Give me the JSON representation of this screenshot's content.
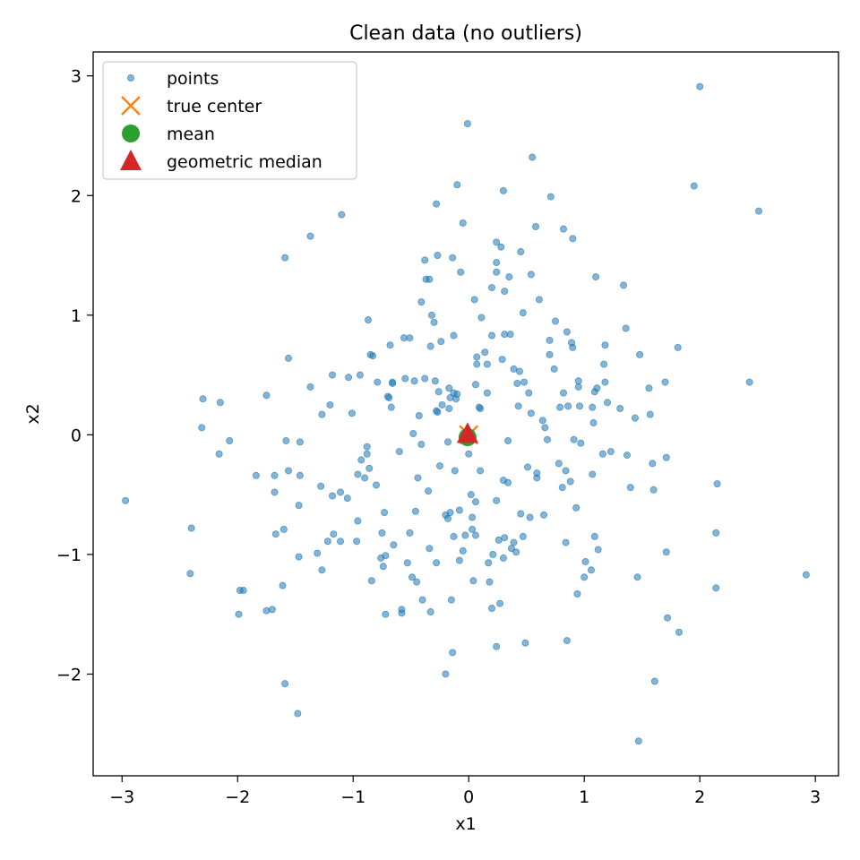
{
  "chart_data": {
    "type": "scatter",
    "title": "Clean data (no outliers)",
    "xlabel": "x1",
    "ylabel": "x2",
    "xlim": [
      -3.25,
      3.2
    ],
    "ylim": [
      -2.85,
      3.2
    ],
    "xticks": [
      -3,
      -2,
      -1,
      0,
      1,
      2,
      3
    ],
    "yticks": [
      -2,
      -1,
      0,
      1,
      2,
      3
    ],
    "tick_labels_x": [
      "−3",
      "−2",
      "−1",
      "0",
      "1",
      "2",
      "3"
    ],
    "tick_labels_y": [
      "−2",
      "−1",
      "0",
      "1",
      "2",
      "3"
    ],
    "grid": false,
    "legend_position": "top-left",
    "colors": {
      "points": "#1f77b4",
      "true_center": "#ff7f0e",
      "mean": "#2ca02c",
      "geometric_median": "#d62728"
    },
    "legend": [
      {
        "key": "points",
        "label": "points",
        "marker": "circle-small"
      },
      {
        "key": "true_center",
        "label": "true center",
        "marker": "x"
      },
      {
        "key": "mean",
        "label": "mean",
        "marker": "circle"
      },
      {
        "key": "geometric_median",
        "label": "geometric median",
        "marker": "triangle"
      }
    ],
    "series": [
      {
        "name": "points",
        "points": [
          [
            -2.97,
            -0.55
          ],
          [
            -2.4,
            -0.78
          ],
          [
            -2.41,
            -1.16
          ],
          [
            -2.3,
            0.3
          ],
          [
            -2.31,
            0.06
          ],
          [
            -2.15,
            0.27
          ],
          [
            -2.16,
            -0.16
          ],
          [
            -2.07,
            -0.05
          ],
          [
            -1.98,
            -1.3
          ],
          [
            -1.99,
            -1.5
          ],
          [
            -1.95,
            -1.3
          ],
          [
            -1.84,
            -0.34
          ],
          [
            -1.75,
            0.33
          ],
          [
            -1.75,
            -1.47
          ],
          [
            -1.7,
            -1.46
          ],
          [
            -1.67,
            -0.83
          ],
          [
            -1.68,
            -0.48
          ],
          [
            -1.68,
            -0.34
          ],
          [
            -1.61,
            -1.26
          ],
          [
            -1.6,
            -0.79
          ],
          [
            -1.59,
            1.48
          ],
          [
            -1.58,
            -0.05
          ],
          [
            -1.56,
            -0.3
          ],
          [
            -1.56,
            0.64
          ],
          [
            -1.59,
            -2.08
          ],
          [
            -1.48,
            -2.33
          ],
          [
            -1.47,
            -1.02
          ],
          [
            -1.46,
            -0.34
          ],
          [
            -1.46,
            -0.06
          ],
          [
            -1.47,
            -0.59
          ],
          [
            -1.37,
            1.66
          ],
          [
            -1.37,
            0.4
          ],
          [
            -1.31,
            -0.99
          ],
          [
            -1.28,
            -0.43
          ],
          [
            -1.27,
            -1.13
          ],
          [
            -1.27,
            0.17
          ],
          [
            -1.22,
            -0.89
          ],
          [
            -1.2,
            0.25
          ],
          [
            -1.18,
            0.5
          ],
          [
            -1.18,
            -0.51
          ],
          [
            -1.17,
            -0.83
          ],
          [
            -1.11,
            -0.48
          ],
          [
            -1.11,
            -0.89
          ],
          [
            -1.1,
            1.84
          ],
          [
            -1.05,
            -0.53
          ],
          [
            -1.04,
            0.48
          ],
          [
            -1.01,
            0.18
          ],
          [
            -0.97,
            -0.89
          ],
          [
            -0.96,
            -0.72
          ],
          [
            -0.96,
            -0.33
          ],
          [
            -0.94,
            0.5
          ],
          [
            -0.93,
            -0.21
          ],
          [
            -0.9,
            -0.36
          ],
          [
            -0.88,
            -0.1
          ],
          [
            -0.88,
            -0.16
          ],
          [
            -0.87,
            0.96
          ],
          [
            -0.85,
            0.67
          ],
          [
            -0.86,
            -0.28
          ],
          [
            -0.84,
            -1.22
          ],
          [
            -0.83,
            0.66
          ],
          [
            -0.8,
            -0.42
          ],
          [
            -0.79,
            0.44
          ],
          [
            -0.75,
            -0.82
          ],
          [
            -0.76,
            -1.03
          ],
          [
            -0.74,
            -1.1
          ],
          [
            -0.73,
            -0.65
          ],
          [
            -0.72,
            -1.01
          ],
          [
            -0.72,
            -1.5
          ],
          [
            -0.7,
            0.32
          ],
          [
            -0.69,
            0.31
          ],
          [
            -0.66,
            0.43
          ],
          [
            -0.66,
            0.44
          ],
          [
            -0.67,
            0.23
          ],
          [
            -0.68,
            0.75
          ],
          [
            -0.65,
            -0.92
          ],
          [
            -0.6,
            -0.14
          ],
          [
            -0.58,
            -1.46
          ],
          [
            -0.58,
            -1.49
          ],
          [
            -0.56,
            0.81
          ],
          [
            -0.55,
            0.47
          ],
          [
            -0.53,
            -1.07
          ],
          [
            -0.51,
            0.81
          ],
          [
            -0.51,
            -0.82
          ],
          [
            -0.49,
            -1.19
          ],
          [
            -0.48,
            0.01
          ],
          [
            -0.47,
            0.45
          ],
          [
            -0.46,
            -0.64
          ],
          [
            -0.45,
            -1.23
          ],
          [
            -0.44,
            -0.36
          ],
          [
            -0.43,
            0.16
          ],
          [
            -0.41,
            -0.08
          ],
          [
            -0.41,
            1.11
          ],
          [
            -0.4,
            -1.38
          ],
          [
            -0.38,
            0.47
          ],
          [
            -0.38,
            1.46
          ],
          [
            -0.37,
            1.3
          ],
          [
            -0.35,
            -0.47
          ],
          [
            -0.34,
            1.3
          ],
          [
            -0.34,
            -0.95
          ],
          [
            -0.33,
            0.74
          ],
          [
            -0.33,
            -1.48
          ],
          [
            -0.32,
            1.0
          ],
          [
            -0.3,
            0.94
          ],
          [
            -0.29,
            0.45
          ],
          [
            -0.28,
            1.93
          ],
          [
            -0.28,
            0.2
          ],
          [
            -0.28,
            -1.07
          ],
          [
            -0.27,
            0.19
          ],
          [
            -0.26,
            0.36
          ],
          [
            -0.27,
            1.5
          ],
          [
            -0.25,
            -0.26
          ],
          [
            -0.24,
            0.78
          ],
          [
            -0.23,
            0.25
          ],
          [
            -0.2,
            -0.67
          ],
          [
            -0.2,
            -2.0
          ],
          [
            -0.18,
            -0.7
          ],
          [
            -0.18,
            -0.06
          ],
          [
            -0.17,
            0.22
          ],
          [
            -0.17,
            0.39
          ],
          [
            -0.16,
            0.31
          ],
          [
            -0.16,
            -0.65
          ],
          [
            -0.15,
            -1.38
          ],
          [
            -0.14,
            1.48
          ],
          [
            -0.13,
            0.35
          ],
          [
            -0.14,
            -1.82
          ],
          [
            -0.13,
            -0.85
          ],
          [
            -0.13,
            0.83
          ],
          [
            -0.12,
            -0.3
          ],
          [
            -0.11,
            0.3
          ],
          [
            -0.1,
            0.34
          ],
          [
            -0.1,
            2.09
          ],
          [
            -0.08,
            -0.63
          ],
          [
            -0.08,
            -1.05
          ],
          [
            -0.07,
            1.36
          ],
          [
            -0.05,
            -0.97
          ],
          [
            -0.05,
            1.77
          ],
          [
            -0.03,
            -0.84
          ],
          [
            -0.01,
            2.6
          ],
          [
            0.0,
            -0.16
          ],
          [
            0.02,
            -0.5
          ],
          [
            0.03,
            -0.79
          ],
          [
            0.03,
            -0.69
          ],
          [
            0.04,
            -1.22
          ],
          [
            0.05,
            1.13
          ],
          [
            0.06,
            -0.56
          ],
          [
            0.06,
            0.42
          ],
          [
            0.06,
            -0.84
          ],
          [
            0.07,
            0.65
          ],
          [
            0.07,
            0.59
          ],
          [
            0.09,
            0.23
          ],
          [
            0.1,
            -0.3
          ],
          [
            0.1,
            0.22
          ],
          [
            0.11,
            0.98
          ],
          [
            0.14,
            0.69
          ],
          [
            0.16,
            0.59
          ],
          [
            0.16,
            0.35
          ],
          [
            0.17,
            -1.07
          ],
          [
            0.18,
            -1.23
          ],
          [
            0.2,
            -1.45
          ],
          [
            0.2,
            0.83
          ],
          [
            0.2,
            1.23
          ],
          [
            0.21,
            -1.0
          ],
          [
            0.24,
            1.44
          ],
          [
            0.24,
            1.36
          ],
          [
            0.24,
            -1.77
          ],
          [
            0.24,
            -0.55
          ],
          [
            0.24,
            1.61
          ],
          [
            0.26,
            -0.88
          ],
          [
            0.27,
            -1.41
          ],
          [
            0.28,
            1.57
          ],
          [
            0.29,
            0.63
          ],
          [
            0.3,
            -0.38
          ],
          [
            0.3,
            -1.03
          ],
          [
            0.3,
            2.04
          ],
          [
            0.31,
            -0.86
          ],
          [
            0.31,
            0.84
          ],
          [
            0.31,
            1.2
          ],
          [
            0.34,
            -0.05
          ],
          [
            0.34,
            -0.4
          ],
          [
            0.35,
            1.32
          ],
          [
            0.36,
            0.84
          ],
          [
            0.37,
            -0.95
          ],
          [
            0.39,
            0.55
          ],
          [
            0.39,
            -0.9
          ],
          [
            0.41,
            -0.98
          ],
          [
            0.42,
            0.43
          ],
          [
            0.43,
            0.24
          ],
          [
            0.44,
            0.53
          ],
          [
            0.45,
            1.53
          ],
          [
            0.45,
            -0.66
          ],
          [
            0.47,
            1.02
          ],
          [
            0.48,
            0.44
          ],
          [
            0.47,
            -0.85
          ],
          [
            0.49,
            -1.74
          ],
          [
            0.51,
            -0.27
          ],
          [
            0.52,
            0.35
          ],
          [
            0.53,
            -0.69
          ],
          [
            0.54,
            1.34
          ],
          [
            0.54,
            0.18
          ],
          [
            0.55,
            2.32
          ],
          [
            0.58,
            1.74
          ],
          [
            0.59,
            -0.32
          ],
          [
            0.59,
            -0.36
          ],
          [
            0.61,
            1.13
          ],
          [
            0.64,
            0.12
          ],
          [
            0.65,
            -0.67
          ],
          [
            0.66,
            0.06
          ],
          [
            0.68,
            -0.04
          ],
          [
            0.7,
            0.67
          ],
          [
            0.7,
            0.79
          ],
          [
            0.71,
            1.99
          ],
          [
            0.74,
            0.55
          ],
          [
            0.75,
            0.95
          ],
          [
            0.78,
            -0.24
          ],
          [
            0.79,
            0.23
          ],
          [
            0.81,
            -0.44
          ],
          [
            0.82,
            1.72
          ],
          [
            0.82,
            0.35
          ],
          [
            0.84,
            -0.3
          ],
          [
            0.84,
            -0.9
          ],
          [
            0.85,
            0.86
          ],
          [
            0.85,
            -1.72
          ],
          [
            0.86,
            0.24
          ],
          [
            0.88,
            -0.39
          ],
          [
            0.89,
            0.77
          ],
          [
            0.9,
            0.73
          ],
          [
            0.9,
            1.64
          ],
          [
            0.91,
            -0.04
          ],
          [
            0.94,
            -1.33
          ],
          [
            0.93,
            -0.61
          ],
          [
            0.95,
            0.45
          ],
          [
            0.95,
            0.4
          ],
          [
            0.96,
            0.24
          ],
          [
            0.97,
            -0.07
          ],
          [
            1.0,
            -1.19
          ],
          [
            1.01,
            -1.06
          ],
          [
            1.06,
            -1.13
          ],
          [
            1.07,
            -0.33
          ],
          [
            1.07,
            0.23
          ],
          [
            1.08,
            0.1
          ],
          [
            1.09,
            0.36
          ],
          [
            1.09,
            -0.85
          ],
          [
            1.1,
            1.32
          ],
          [
            1.11,
            0.39
          ],
          [
            1.12,
            -0.96
          ],
          [
            1.16,
            -0.16
          ],
          [
            1.17,
            0.59
          ],
          [
            1.18,
            0.44
          ],
          [
            1.18,
            0.75
          ],
          [
            1.2,
            0.27
          ],
          [
            1.23,
            -0.14
          ],
          [
            1.31,
            0.22
          ],
          [
            1.34,
            1.25
          ],
          [
            1.36,
            0.89
          ],
          [
            1.37,
            -0.17
          ],
          [
            1.4,
            -0.44
          ],
          [
            1.44,
            0.14
          ],
          [
            1.46,
            -1.19
          ],
          [
            1.47,
            -2.56
          ],
          [
            1.48,
            0.67
          ],
          [
            1.56,
            0.39
          ],
          [
            1.57,
            0.17
          ],
          [
            1.59,
            -0.24
          ],
          [
            1.6,
            -0.46
          ],
          [
            1.61,
            -2.06
          ],
          [
            1.7,
            0.44
          ],
          [
            1.71,
            -0.19
          ],
          [
            1.71,
            -0.98
          ],
          [
            1.72,
            -1.53
          ],
          [
            1.81,
            0.73
          ],
          [
            1.82,
            -1.65
          ],
          [
            1.95,
            2.08
          ],
          [
            2.0,
            2.91
          ],
          [
            2.14,
            -0.82
          ],
          [
            2.14,
            -1.28
          ],
          [
            2.15,
            -0.41
          ],
          [
            2.43,
            0.44
          ],
          [
            2.51,
            1.87
          ],
          [
            2.92,
            -1.17
          ]
        ]
      },
      {
        "name": "true center",
        "points": [
          [
            0,
            0
          ]
        ]
      },
      {
        "name": "mean",
        "points": [
          [
            -0.01,
            -0.02
          ]
        ]
      },
      {
        "name": "geometric median",
        "points": [
          [
            -0.01,
            0.0
          ]
        ]
      }
    ]
  }
}
